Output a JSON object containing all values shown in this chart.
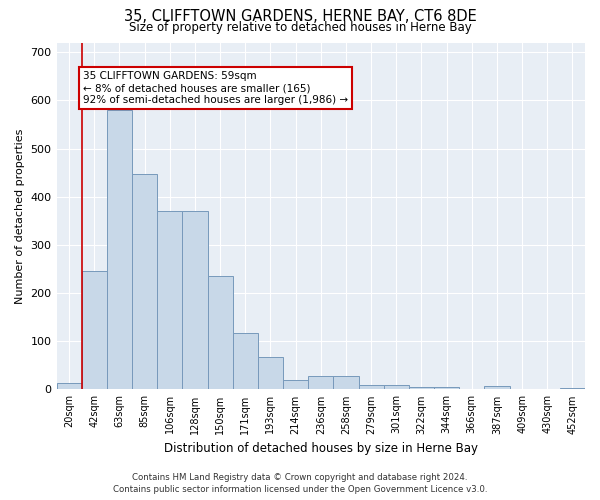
{
  "title": "35, CLIFFTOWN GARDENS, HERNE BAY, CT6 8DE",
  "subtitle": "Size of property relative to detached houses in Herne Bay",
  "xlabel": "Distribution of detached houses by size in Herne Bay",
  "ylabel": "Number of detached properties",
  "bar_color": "#c8d8e8",
  "bar_edge_color": "#7799bb",
  "background_color": "#e8eef5",
  "grid_color": "#ffffff",
  "categories": [
    "20sqm",
    "42sqm",
    "63sqm",
    "85sqm",
    "106sqm",
    "128sqm",
    "150sqm",
    "171sqm",
    "193sqm",
    "214sqm",
    "236sqm",
    "258sqm",
    "279sqm",
    "301sqm",
    "322sqm",
    "344sqm",
    "366sqm",
    "387sqm",
    "409sqm",
    "430sqm",
    "452sqm"
  ],
  "values": [
    14,
    245,
    580,
    448,
    370,
    370,
    235,
    117,
    68,
    20,
    28,
    28,
    10,
    10,
    6,
    6,
    0,
    7,
    0,
    0,
    4
  ],
  "ylim": [
    0,
    720
  ],
  "yticks": [
    0,
    100,
    200,
    300,
    400,
    500,
    600,
    700
  ],
  "vline_color": "#cc0000",
  "annotation_text": "35 CLIFFTOWN GARDENS: 59sqm\n← 8% of detached houses are smaller (165)\n92% of semi-detached houses are larger (1,986) →",
  "annotation_box_color": "#ffffff",
  "annotation_box_edge_color": "#cc0000",
  "footer_line1": "Contains HM Land Registry data © Crown copyright and database right 2024.",
  "footer_line2": "Contains public sector information licensed under the Open Government Licence v3.0."
}
